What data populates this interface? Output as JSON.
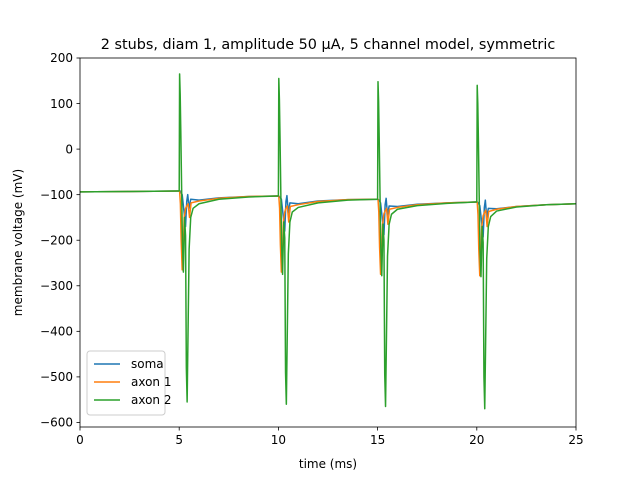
{
  "chart_data": {
    "type": "line",
    "title": "2 stubs, diam 1, amplitude 50 µA, 5 channel model, symmetric",
    "xlabel": "time (ms)",
    "ylabel": "membrane voltage (mV)",
    "xlim": [
      0,
      25
    ],
    "ylim": [
      -610,
      200
    ],
    "xticks": [
      0,
      5,
      10,
      15,
      20,
      25
    ],
    "yticks": [
      -600,
      -500,
      -400,
      -300,
      -200,
      -100,
      0,
      100,
      200
    ],
    "grid": false,
    "legend_position": "lower-left",
    "series": [
      {
        "name": "soma",
        "color": "#1f77b4",
        "points": [
          [
            0,
            -94
          ],
          [
            2.5,
            -93
          ],
          [
            4.95,
            -92
          ],
          [
            5.05,
            -92
          ],
          [
            5.15,
            -100
          ],
          [
            5.25,
            -140
          ],
          [
            5.32,
            -170
          ],
          [
            5.38,
            -115
          ],
          [
            5.43,
            -100
          ],
          [
            5.5,
            -130
          ],
          [
            5.58,
            -110
          ],
          [
            6,
            -112
          ],
          [
            7,
            -107
          ],
          [
            8.5,
            -104
          ],
          [
            9.95,
            -103
          ],
          [
            10.05,
            -104
          ],
          [
            10.15,
            -110
          ],
          [
            10.25,
            -150
          ],
          [
            10.32,
            -180
          ],
          [
            10.38,
            -115
          ],
          [
            10.43,
            -102
          ],
          [
            10.5,
            -140
          ],
          [
            10.58,
            -118
          ],
          [
            11,
            -120
          ],
          [
            12,
            -114
          ],
          [
            13.5,
            -111
          ],
          [
            14.95,
            -110
          ],
          [
            15.05,
            -111
          ],
          [
            15.15,
            -118
          ],
          [
            15.25,
            -158
          ],
          [
            15.32,
            -188
          ],
          [
            15.38,
            -122
          ],
          [
            15.43,
            -108
          ],
          [
            15.5,
            -145
          ],
          [
            15.58,
            -125
          ],
          [
            16,
            -126
          ],
          [
            17,
            -121
          ],
          [
            18.5,
            -118
          ],
          [
            19.95,
            -116
          ],
          [
            20.05,
            -117
          ],
          [
            20.15,
            -124
          ],
          [
            20.25,
            -163
          ],
          [
            20.32,
            -193
          ],
          [
            20.38,
            -128
          ],
          [
            20.43,
            -112
          ],
          [
            20.5,
            -150
          ],
          [
            20.58,
            -130
          ],
          [
            21,
            -131
          ],
          [
            22,
            -126
          ],
          [
            23.5,
            -122
          ],
          [
            25,
            -120
          ]
        ]
      },
      {
        "name": "axon 1",
        "color": "#ff7f0e",
        "points": [
          [
            0,
            -94
          ],
          [
            2.5,
            -93
          ],
          [
            4.95,
            -92
          ],
          [
            5.02,
            -92
          ],
          [
            5.06,
            -120
          ],
          [
            5.1,
            -200
          ],
          [
            5.15,
            -265
          ],
          [
            5.2,
            -240
          ],
          [
            5.25,
            -150
          ],
          [
            5.32,
            -130
          ],
          [
            5.38,
            -125
          ],
          [
            5.45,
            -120
          ],
          [
            5.52,
            -150
          ],
          [
            5.6,
            -118
          ],
          [
            6,
            -114
          ],
          [
            7,
            -108
          ],
          [
            8.5,
            -104
          ],
          [
            9.95,
            -103
          ],
          [
            10.02,
            -103
          ],
          [
            10.06,
            -130
          ],
          [
            10.1,
            -210
          ],
          [
            10.15,
            -270
          ],
          [
            10.2,
            -245
          ],
          [
            10.25,
            -160
          ],
          [
            10.32,
            -138
          ],
          [
            10.38,
            -130
          ],
          [
            10.45,
            -125
          ],
          [
            10.52,
            -160
          ],
          [
            10.6,
            -126
          ],
          [
            11,
            -122
          ],
          [
            12,
            -115
          ],
          [
            13.5,
            -111
          ],
          [
            14.95,
            -110
          ],
          [
            15.02,
            -110
          ],
          [
            15.06,
            -138
          ],
          [
            15.1,
            -215
          ],
          [
            15.15,
            -275
          ],
          [
            15.2,
            -250
          ],
          [
            15.25,
            -165
          ],
          [
            15.32,
            -142
          ],
          [
            15.38,
            -136
          ],
          [
            15.45,
            -130
          ],
          [
            15.52,
            -165
          ],
          [
            15.6,
            -132
          ],
          [
            16,
            -128
          ],
          [
            17,
            -122
          ],
          [
            18.5,
            -118
          ],
          [
            19.95,
            -116
          ],
          [
            20.02,
            -116
          ],
          [
            20.06,
            -144
          ],
          [
            20.1,
            -220
          ],
          [
            20.15,
            -278
          ],
          [
            20.2,
            -255
          ],
          [
            20.25,
            -170
          ],
          [
            20.32,
            -146
          ],
          [
            20.38,
            -140
          ],
          [
            20.45,
            -134
          ],
          [
            20.52,
            -170
          ],
          [
            20.6,
            -137
          ],
          [
            21,
            -132
          ],
          [
            22,
            -126
          ],
          [
            23.5,
            -122
          ],
          [
            25,
            -120
          ]
        ]
      },
      {
        "name": "axon 2",
        "color": "#2ca02c",
        "points": [
          [
            0,
            -94
          ],
          [
            2.5,
            -93
          ],
          [
            4.95,
            -92
          ],
          [
            5.0,
            -92
          ],
          [
            5.02,
            165
          ],
          [
            5.05,
            120
          ],
          [
            5.08,
            40
          ],
          [
            5.12,
            -80
          ],
          [
            5.16,
            -200
          ],
          [
            5.21,
            -270
          ],
          [
            5.27,
            -150
          ],
          [
            5.32,
            -190
          ],
          [
            5.36,
            -480
          ],
          [
            5.4,
            -555
          ],
          [
            5.44,
            -420
          ],
          [
            5.5,
            -220
          ],
          [
            5.58,
            -150
          ],
          [
            5.7,
            -130
          ],
          [
            6,
            -120
          ],
          [
            7,
            -110
          ],
          [
            8.5,
            -105
          ],
          [
            9.95,
            -103
          ],
          [
            10.0,
            -103
          ],
          [
            10.02,
            155
          ],
          [
            10.05,
            110
          ],
          [
            10.08,
            30
          ],
          [
            10.12,
            -90
          ],
          [
            10.16,
            -210
          ],
          [
            10.21,
            -275
          ],
          [
            10.27,
            -160
          ],
          [
            10.32,
            -195
          ],
          [
            10.36,
            -490
          ],
          [
            10.4,
            -560
          ],
          [
            10.44,
            -430
          ],
          [
            10.5,
            -230
          ],
          [
            10.58,
            -160
          ],
          [
            10.7,
            -138
          ],
          [
            11,
            -128
          ],
          [
            12,
            -118
          ],
          [
            13.5,
            -112
          ],
          [
            14.95,
            -110
          ],
          [
            15.0,
            -110
          ],
          [
            15.02,
            148
          ],
          [
            15.05,
            105
          ],
          [
            15.08,
            25
          ],
          [
            15.12,
            -95
          ],
          [
            15.16,
            -215
          ],
          [
            15.21,
            -278
          ],
          [
            15.27,
            -165
          ],
          [
            15.32,
            -200
          ],
          [
            15.36,
            -495
          ],
          [
            15.4,
            -565
          ],
          [
            15.44,
            -435
          ],
          [
            15.5,
            -235
          ],
          [
            15.58,
            -165
          ],
          [
            15.7,
            -143
          ],
          [
            16,
            -132
          ],
          [
            17,
            -124
          ],
          [
            18.5,
            -119
          ],
          [
            19.95,
            -116
          ],
          [
            20.0,
            -116
          ],
          [
            20.02,
            140
          ],
          [
            20.05,
            100
          ],
          [
            20.08,
            20
          ],
          [
            20.12,
            -100
          ],
          [
            20.16,
            -220
          ],
          [
            20.21,
            -280
          ],
          [
            20.27,
            -170
          ],
          [
            20.32,
            -205
          ],
          [
            20.36,
            -500
          ],
          [
            20.4,
            -570
          ],
          [
            20.44,
            -440
          ],
          [
            20.5,
            -240
          ],
          [
            20.58,
            -170
          ],
          [
            20.7,
            -148
          ],
          [
            21,
            -136
          ],
          [
            22,
            -127
          ],
          [
            23.5,
            -122
          ],
          [
            25,
            -120
          ]
        ]
      }
    ]
  }
}
